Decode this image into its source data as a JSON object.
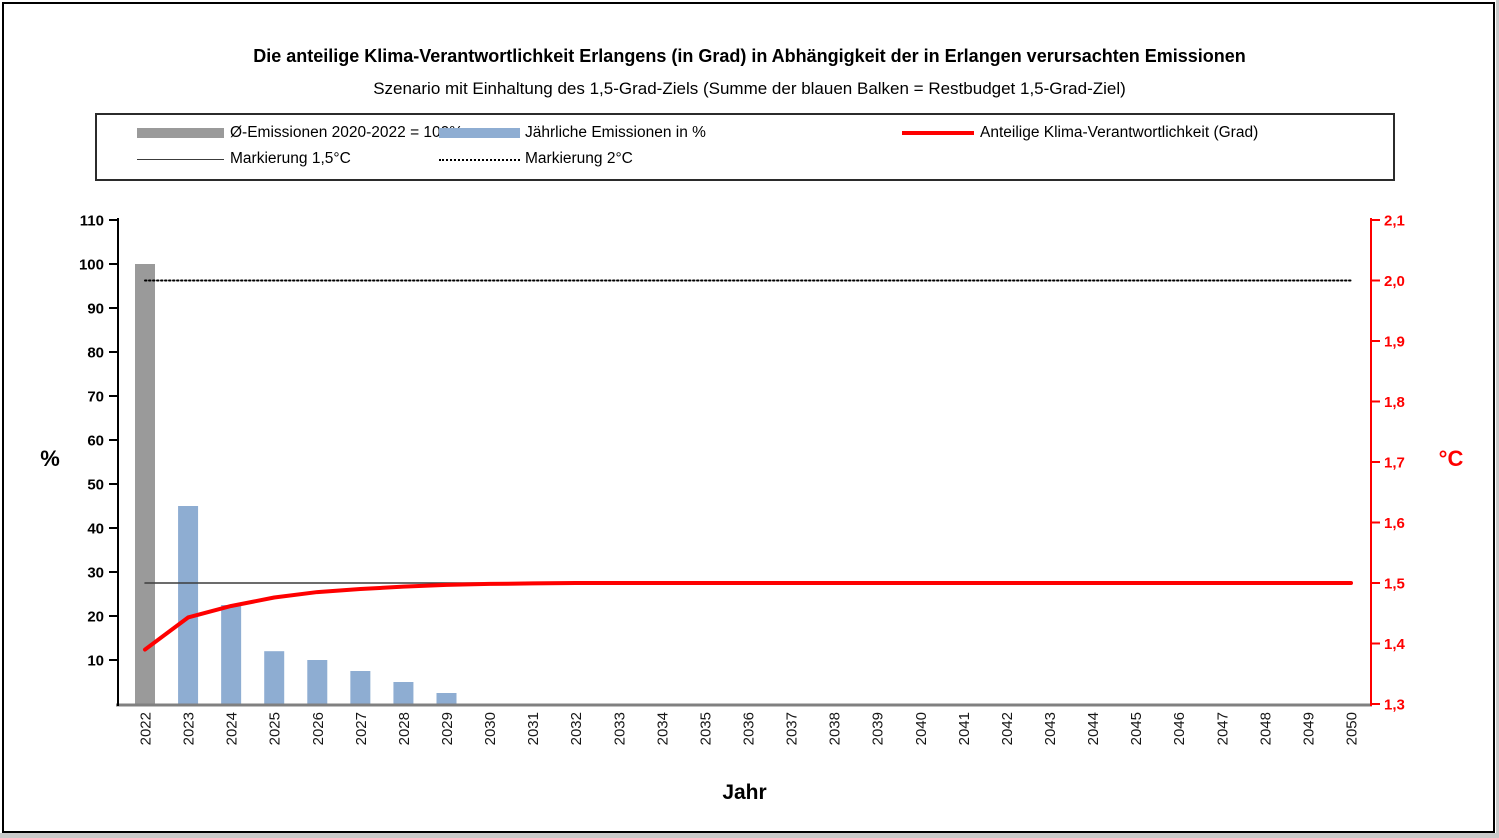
{
  "page": {
    "title": "Die anteilige Klima-Verantwortlichkeit Erlangens (in Grad) in Abhängigkeit der in Erlangen verursachten Emissionen",
    "subtitle": "Szenario mit Einhaltung des 1,5-Grad-Ziels (Summe der blauen Balken = Restbudget 1,5-Grad-Ziel)"
  },
  "legend": {
    "items": [
      {
        "label": "Ø-Emissionen 2020-2022 = 100%",
        "swatch": "bar",
        "color": "#9a9a9a"
      },
      {
        "label": "Jährliche Emissionen in %",
        "swatch": "bar",
        "color": "#8eadd2"
      },
      {
        "label": "Anteilige Klima-Verantwortlichkeit (Grad)",
        "swatch": "line",
        "color": "#fe0000"
      },
      {
        "label": "Markierung 1,5°C",
        "swatch": "thin-line",
        "color": "#3c3c3c"
      },
      {
        "label": "Markierung 2°C",
        "swatch": "dotted-line",
        "color": "#000000"
      }
    ]
  },
  "chart_data": {
    "type": "bar",
    "subtype": "combo-bar-line-dual-axis",
    "title": "Die anteilige Klima-Verantwortlichkeit Erlangens (in Grad) in Abhängigkeit der in Erlangen verursachten Emissionen",
    "subtitle": "Szenario mit Einhaltung des 1,5-Grad-Ziels (Summe der blauen Balken = Restbudget 1,5-Grad-Ziel)",
    "x": [
      "2022",
      "2023",
      "2024",
      "2025",
      "2026",
      "2027",
      "2028",
      "2029",
      "2030",
      "2031",
      "2032",
      "2033",
      "2034",
      "2035",
      "2036",
      "2037",
      "2038",
      "2039",
      "2040",
      "2041",
      "2042",
      "2043",
      "2044",
      "2045",
      "2046",
      "2047",
      "2048",
      "2049",
      "2050"
    ],
    "series": [
      {
        "name": "Ø-Emissionen 2020-2022 = 100%",
        "type": "bar",
        "axis": "left",
        "color": "#9a9a9a",
        "values": [
          100,
          null,
          null,
          null,
          null,
          null,
          null,
          null,
          null,
          null,
          null,
          null,
          null,
          null,
          null,
          null,
          null,
          null,
          null,
          null,
          null,
          null,
          null,
          null,
          null,
          null,
          null,
          null,
          null
        ]
      },
      {
        "name": "Jährliche Emissionen in %",
        "type": "bar",
        "axis": "left",
        "color": "#8eadd2",
        "values": [
          null,
          45,
          22.5,
          12,
          10,
          7.5,
          5,
          2.5,
          null,
          null,
          null,
          null,
          null,
          null,
          null,
          null,
          null,
          null,
          null,
          null,
          null,
          null,
          null,
          null,
          null,
          null,
          null,
          null,
          null
        ]
      },
      {
        "name": "Markierung 1,5°C",
        "type": "line",
        "axis": "right",
        "color": "#3c3c3c",
        "width": 1.5,
        "values": [
          1.5,
          1.5,
          1.5,
          1.5,
          1.5,
          1.5,
          1.5,
          1.5,
          1.5,
          1.5,
          1.5,
          1.5,
          1.5,
          1.5,
          1.5,
          1.5,
          1.5,
          1.5,
          1.5,
          1.5,
          1.5,
          1.5,
          1.5,
          1.5,
          1.5,
          1.5,
          1.5,
          1.5,
          1.5
        ]
      },
      {
        "name": "Markierung 2°C",
        "type": "line",
        "axis": "right",
        "color": "#000000",
        "width": 2,
        "dash": "1.5 2.5",
        "values": [
          2,
          2,
          2,
          2,
          2,
          2,
          2,
          2,
          2,
          2,
          2,
          2,
          2,
          2,
          2,
          2,
          2,
          2,
          2,
          2,
          2,
          2,
          2,
          2,
          2,
          2,
          2,
          2,
          2
        ]
      },
      {
        "name": "Anteilige Klima-Verantwortlichkeit (Grad)",
        "type": "line",
        "axis": "right",
        "color": "#fe0000",
        "width": 4,
        "values": [
          1.39,
          1.443,
          1.462,
          1.476,
          1.485,
          1.49,
          1.494,
          1.497,
          1.4985,
          1.4993,
          1.5,
          1.5,
          1.5,
          1.5,
          1.5,
          1.5,
          1.5,
          1.5,
          1.5,
          1.5,
          1.5,
          1.5,
          1.5,
          1.5,
          1.5,
          1.5,
          1.5,
          1.5,
          1.5
        ]
      }
    ],
    "left_axis": {
      "label": "%",
      "range": [
        0,
        110
      ],
      "ticks": [
        10,
        20,
        30,
        40,
        50,
        60,
        70,
        80,
        90,
        100,
        110
      ],
      "color": "#000000"
    },
    "right_axis": {
      "label": "°C",
      "range": [
        1.3,
        2.1
      ],
      "color": "#fe0000",
      "ticks": [
        {
          "v": 1.3,
          "t": "1,3"
        },
        {
          "v": 1.4,
          "t": "1,4"
        },
        {
          "v": 1.5,
          "t": "1,5"
        },
        {
          "v": 1.6,
          "t": "1,6"
        },
        {
          "v": 1.7,
          "t": "1,7"
        },
        {
          "v": 1.8,
          "t": "1,8"
        },
        {
          "v": 1.9,
          "t": "1,9"
        },
        {
          "v": 2.0,
          "t": "2,0"
        },
        {
          "v": 2.1,
          "t": "2,1"
        }
      ]
    },
    "x_axis": {
      "label": "Jahr",
      "tick_rotation": -90
    },
    "grid": false,
    "legend_position": "top"
  }
}
